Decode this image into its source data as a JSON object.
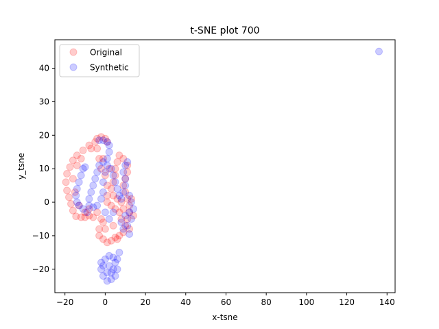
{
  "chart_data": {
    "type": "scatter",
    "title": "t-SNE plot 700",
    "xlabel": "x-tsne",
    "ylabel": "y_tsne",
    "xlim": [
      -25,
      144
    ],
    "ylim": [
      -27,
      48.5
    ],
    "xticks": [
      -20,
      0,
      20,
      40,
      60,
      80,
      100,
      120,
      140
    ],
    "yticks": [
      -20,
      -10,
      0,
      10,
      20,
      30,
      40
    ],
    "grid": false,
    "legend_position": "top-left",
    "series": [
      {
        "name": "Original",
        "color": "#ff0000",
        "alpha": 0.2,
        "points": [
          [
            -4,
            19
          ],
          [
            -2,
            19.5
          ],
          [
            0,
            19
          ],
          [
            1,
            18
          ],
          [
            -5,
            18
          ],
          [
            -8,
            17
          ],
          [
            -11,
            15.5
          ],
          [
            -14,
            14
          ],
          [
            -16,
            12.5
          ],
          [
            -17.5,
            10.5
          ],
          [
            -19,
            8.5
          ],
          [
            -19.5,
            6
          ],
          [
            -19,
            3.5
          ],
          [
            -18,
            1.5
          ],
          [
            -17,
            -0.5
          ],
          [
            -16,
            -2.5
          ],
          [
            -14.5,
            -4.2
          ],
          [
            -12,
            -4.5
          ],
          [
            -10,
            -4.5
          ],
          [
            -8,
            -4
          ],
          [
            -6,
            -4.5
          ],
          [
            -4,
            -3
          ],
          [
            -2,
            -5
          ],
          [
            -3,
            -8
          ],
          [
            -3,
            -10
          ],
          [
            -1,
            -11
          ],
          [
            1,
            -12
          ],
          [
            3,
            -11.5
          ],
          [
            5,
            -10.5
          ],
          [
            7,
            -10
          ],
          [
            9,
            -9
          ],
          [
            10,
            -7
          ],
          [
            11,
            -5
          ],
          [
            12,
            -3
          ],
          [
            12,
            -1
          ],
          [
            11,
            1
          ],
          [
            10,
            3
          ],
          [
            9,
            5
          ],
          [
            10,
            7
          ],
          [
            11,
            9
          ],
          [
            11,
            11
          ],
          [
            9,
            13
          ],
          [
            7,
            14
          ],
          [
            6,
            12
          ],
          [
            5,
            10
          ],
          [
            5,
            8
          ],
          [
            4,
            6
          ],
          [
            3,
            4
          ],
          [
            4,
            2
          ],
          [
            6,
            1
          ],
          [
            8,
            0
          ],
          [
            9,
            -2
          ],
          [
            7,
            -3
          ],
          [
            5,
            -2
          ],
          [
            3,
            -1
          ],
          [
            1,
            0
          ],
          [
            1,
            2
          ],
          [
            1,
            5
          ],
          [
            0,
            8
          ],
          [
            -2,
            10
          ],
          [
            -3,
            13
          ],
          [
            -4,
            16
          ],
          [
            -1,
            13
          ],
          [
            2,
            10
          ],
          [
            -8,
            -2
          ],
          [
            -10,
            -3
          ],
          [
            -13,
            -1
          ],
          [
            -15,
            3
          ],
          [
            -16,
            7
          ],
          [
            -14,
            11
          ],
          [
            -12,
            13
          ],
          [
            -7,
            16
          ],
          [
            -1,
            -6
          ],
          [
            0,
            -8
          ],
          [
            4,
            -7
          ],
          [
            8,
            -5
          ],
          [
            13,
            1
          ],
          [
            14,
            -4
          ],
          [
            12,
            -8
          ],
          [
            6,
            -11
          ]
        ]
      },
      {
        "name": "Synthetic",
        "color": "#0000ff",
        "alpha": 0.2,
        "points": [
          [
            -3,
            18.5
          ],
          [
            -1,
            18.5
          ],
          [
            1,
            18
          ],
          [
            2,
            17
          ],
          [
            2,
            15
          ],
          [
            1,
            13
          ],
          [
            -1,
            12
          ],
          [
            -3,
            11
          ],
          [
            -4,
            9
          ],
          [
            -5,
            7
          ],
          [
            -6,
            5
          ],
          [
            -7,
            3
          ],
          [
            -8,
            1
          ],
          [
            -8,
            -1
          ],
          [
            -6,
            -1.5
          ],
          [
            -4,
            -1
          ],
          [
            -2,
            1
          ],
          [
            -1,
            3
          ],
          [
            -1,
            6
          ],
          [
            0,
            9
          ],
          [
            1,
            11
          ],
          [
            3,
            10
          ],
          [
            4,
            8
          ],
          [
            5,
            6
          ],
          [
            6,
            4
          ],
          [
            7,
            2
          ],
          [
            8,
            1
          ],
          [
            9,
            3
          ],
          [
            10,
            5
          ],
          [
            10,
            7
          ],
          [
            9,
            9
          ],
          [
            10,
            11
          ],
          [
            11,
            12
          ],
          [
            10,
            -4
          ],
          [
            12,
            -3
          ],
          [
            13,
            -5
          ],
          [
            11,
            -7
          ],
          [
            12,
            -9.5
          ],
          [
            9,
            -8
          ],
          [
            8,
            -6
          ],
          [
            13,
            0
          ],
          [
            12,
            2
          ],
          [
            14,
            -2
          ],
          [
            -10,
            10.5
          ],
          [
            -11,
            10
          ],
          [
            -12,
            8
          ],
          [
            -13,
            6
          ],
          [
            -14,
            4
          ],
          [
            -14.5,
            2
          ],
          [
            -14,
            0
          ],
          [
            -13,
            -1
          ],
          [
            -11,
            -2
          ],
          [
            -9,
            -3
          ],
          [
            2,
            -16
          ],
          [
            4,
            -16.5
          ],
          [
            5,
            -18
          ],
          [
            6,
            -20
          ],
          [
            5,
            -22
          ],
          [
            3,
            -23
          ],
          [
            1,
            -23.5
          ],
          [
            -1,
            -22
          ],
          [
            -2,
            -20
          ],
          [
            -2,
            -18
          ],
          [
            0,
            -17
          ],
          [
            2,
            -19
          ],
          [
            3,
            -21
          ],
          [
            1,
            -21
          ],
          [
            4,
            -20
          ],
          [
            -1,
            -19
          ],
          [
            6,
            -17
          ],
          [
            7,
            -15
          ],
          [
            0,
            -3
          ],
          [
            2,
            -5
          ],
          [
            4,
            -3
          ],
          [
            136,
            45
          ]
        ]
      }
    ]
  }
}
